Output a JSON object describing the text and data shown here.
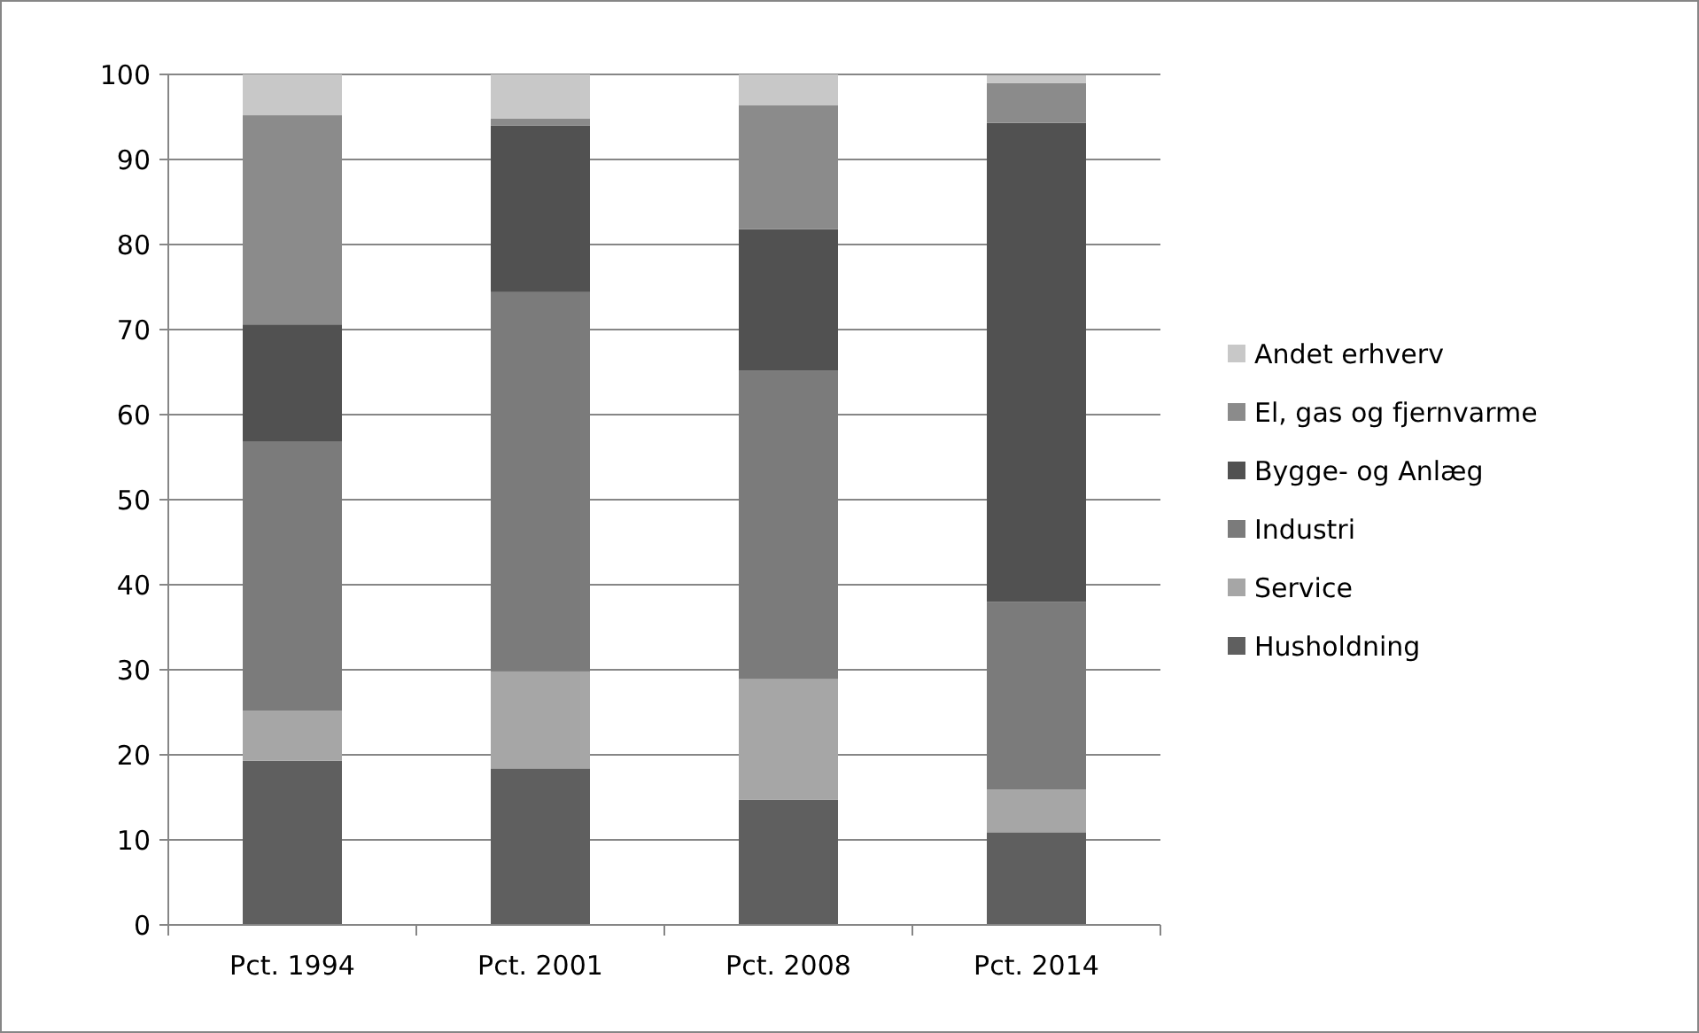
{
  "chart_data": {
    "type": "bar",
    "stacked": true,
    "categories": [
      "Pct. 1994",
      "Pct. 2001",
      "Pct. 2008",
      "Pct. 2014"
    ],
    "series": [
      {
        "name": "Husholdning",
        "color": "#5f5f5f",
        "values": [
          19.3,
          18.4,
          14.7,
          10.9
        ]
      },
      {
        "name": "Service",
        "color": "#a6a6a6",
        "values": [
          5.9,
          11.4,
          14.2,
          5.0
        ]
      },
      {
        "name": "Industri",
        "color": "#7b7b7b",
        "values": [
          31.6,
          44.6,
          36.3,
          22.1
        ]
      },
      {
        "name": "Bygge- og Anlæg",
        "color": "#515151",
        "values": [
          13.8,
          19.6,
          16.6,
          56.3
        ]
      },
      {
        "name": "El, gas og fjernvarme",
        "color": "#8b8b8b",
        "values": [
          24.6,
          0.8,
          14.6,
          4.7
        ]
      },
      {
        "name": "Andet erhverv",
        "color": "#c8c8c8",
        "values": [
          4.8,
          5.2,
          3.6,
          0.9
        ]
      }
    ],
    "ylim": [
      0,
      100
    ],
    "yticks": [
      0,
      10,
      20,
      30,
      40,
      50,
      60,
      70,
      80,
      90,
      100
    ],
    "grid": "y",
    "legend": "right"
  }
}
